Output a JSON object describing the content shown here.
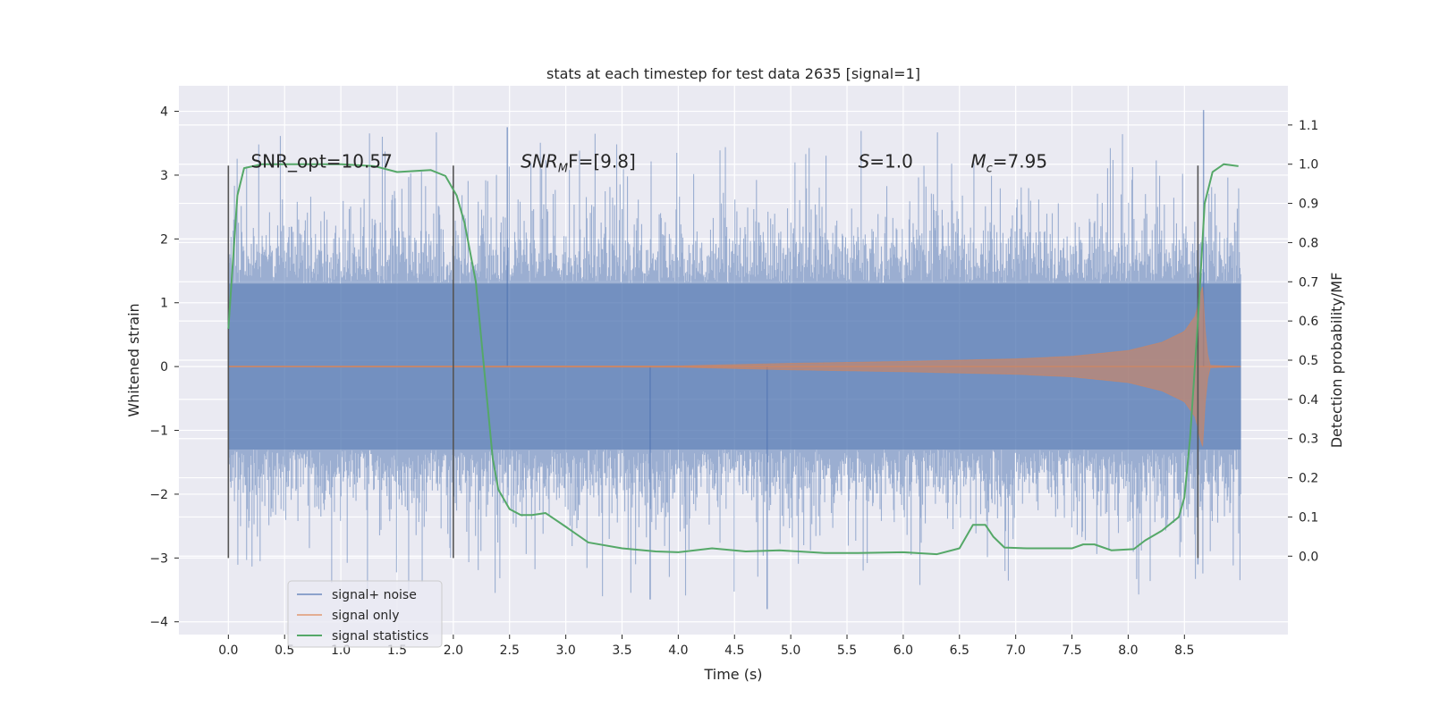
{
  "chart_data": {
    "type": "line",
    "title": "stats at each timestep for test data 2635 [signal=1]",
    "xlabel": "Time (s)",
    "ylabel": "Whitened strain",
    "ylabel_right": "Detection probability/MF",
    "xlim": [
      -0.44,
      9.42
    ],
    "ylim": [
      -4.2,
      4.4
    ],
    "ylim_right": [
      -0.2,
      1.2
    ],
    "x_ticks": [
      "0.0",
      "0.5",
      "1.0",
      "1.5",
      "2.0",
      "2.5",
      "3.0",
      "3.5",
      "4.0",
      "4.5",
      "5.0",
      "5.5",
      "6.0",
      "6.5",
      "7.0",
      "7.5",
      "8.0",
      "8.5"
    ],
    "y_ticks": [
      "−4",
      "−3",
      "−2",
      "−1",
      "0",
      "1",
      "2",
      "3",
      "4"
    ],
    "y_ticks_right": [
      "0.0",
      "0.1",
      "0.2",
      "0.3",
      "0.4",
      "0.5",
      "0.6",
      "0.7",
      "0.8",
      "0.9",
      "1.0",
      "1.1"
    ],
    "grid": true,
    "legend_placement": "lower-left",
    "annotations": [
      {
        "text": "SNR_opt=10.57",
        "x": 0.2,
        "y": 3.12,
        "style": "plain"
      },
      {
        "base": "SNR",
        "sub": "M",
        "rest": "F=[9.8]",
        "x": 2.6,
        "y": 3.12,
        "style": "math"
      },
      {
        "base": "S",
        "sub": "",
        "rest": "=1.0",
        "x": 5.6,
        "y": 3.12,
        "style": "math"
      },
      {
        "base": "M",
        "sub": "c",
        "rest": "=7.95",
        "x": 6.6,
        "y": 3.12,
        "style": "math"
      }
    ],
    "vlines": [
      {
        "x": 0.0,
        "y": [
          -3.0,
          3.15
        ]
      },
      {
        "x": 2.0,
        "y": [
          -3.0,
          3.15
        ]
      },
      {
        "x": 8.62,
        "y": [
          -3.0,
          3.15
        ]
      }
    ],
    "series": [
      {
        "name": "signal+ noise",
        "color": "#4c72b0",
        "alpha": 0.5,
        "axis": "left",
        "x_range": [
          0.0,
          9.0
        ],
        "envelope": {
          "typical_band": 1.3,
          "peak_max": 4.0,
          "trough_min": -3.8
        }
      },
      {
        "name": "signal only",
        "color": "#dd8452",
        "alpha": 0.5,
        "axis": "left",
        "x_range": [
          0.0,
          9.0
        ],
        "amplitude_envelope": [
          [
            0.0,
            0.005
          ],
          [
            4.0,
            0.01
          ],
          [
            5.0,
            0.05
          ],
          [
            6.0,
            0.08
          ],
          [
            7.0,
            0.12
          ],
          [
            7.5,
            0.16
          ],
          [
            8.0,
            0.25
          ],
          [
            8.3,
            0.38
          ],
          [
            8.5,
            0.55
          ],
          [
            8.6,
            0.8
          ],
          [
            8.66,
            1.3
          ],
          [
            8.69,
            0.4
          ],
          [
            8.72,
            0.02
          ],
          [
            9.0,
            0.0
          ]
        ]
      },
      {
        "name": "signal statistics",
        "color": "#55a868",
        "alpha": 1.0,
        "axis": "right",
        "points": [
          [
            0.0,
            0.58
          ],
          [
            0.08,
            0.92
          ],
          [
            0.14,
            0.99
          ],
          [
            0.3,
            1.0
          ],
          [
            1.0,
            1.0
          ],
          [
            1.3,
            0.995
          ],
          [
            1.5,
            0.98
          ],
          [
            1.8,
            0.985
          ],
          [
            1.93,
            0.97
          ],
          [
            2.03,
            0.92
          ],
          [
            2.1,
            0.85
          ],
          [
            2.2,
            0.7
          ],
          [
            2.3,
            0.4
          ],
          [
            2.35,
            0.25
          ],
          [
            2.4,
            0.17
          ],
          [
            2.5,
            0.12
          ],
          [
            2.6,
            0.105
          ],
          [
            2.7,
            0.105
          ],
          [
            2.82,
            0.11
          ],
          [
            3.0,
            0.075
          ],
          [
            3.2,
            0.035
          ],
          [
            3.5,
            0.02
          ],
          [
            3.8,
            0.012
          ],
          [
            4.0,
            0.01
          ],
          [
            4.3,
            0.02
          ],
          [
            4.6,
            0.012
          ],
          [
            4.9,
            0.015
          ],
          [
            5.3,
            0.008
          ],
          [
            5.6,
            0.008
          ],
          [
            6.0,
            0.01
          ],
          [
            6.3,
            0.005
          ],
          [
            6.5,
            0.02
          ],
          [
            6.62,
            0.08
          ],
          [
            6.73,
            0.08
          ],
          [
            6.8,
            0.05
          ],
          [
            6.9,
            0.022
          ],
          [
            7.1,
            0.02
          ],
          [
            7.3,
            0.02
          ],
          [
            7.5,
            0.02
          ],
          [
            7.6,
            0.03
          ],
          [
            7.7,
            0.03
          ],
          [
            7.85,
            0.015
          ],
          [
            8.05,
            0.018
          ],
          [
            8.15,
            0.04
          ],
          [
            8.3,
            0.065
          ],
          [
            8.45,
            0.1
          ],
          [
            8.5,
            0.15
          ],
          [
            8.55,
            0.3
          ],
          [
            8.62,
            0.6
          ],
          [
            8.68,
            0.9
          ],
          [
            8.75,
            0.98
          ],
          [
            8.85,
            1.0
          ],
          [
            8.98,
            0.995
          ]
        ]
      }
    ]
  }
}
